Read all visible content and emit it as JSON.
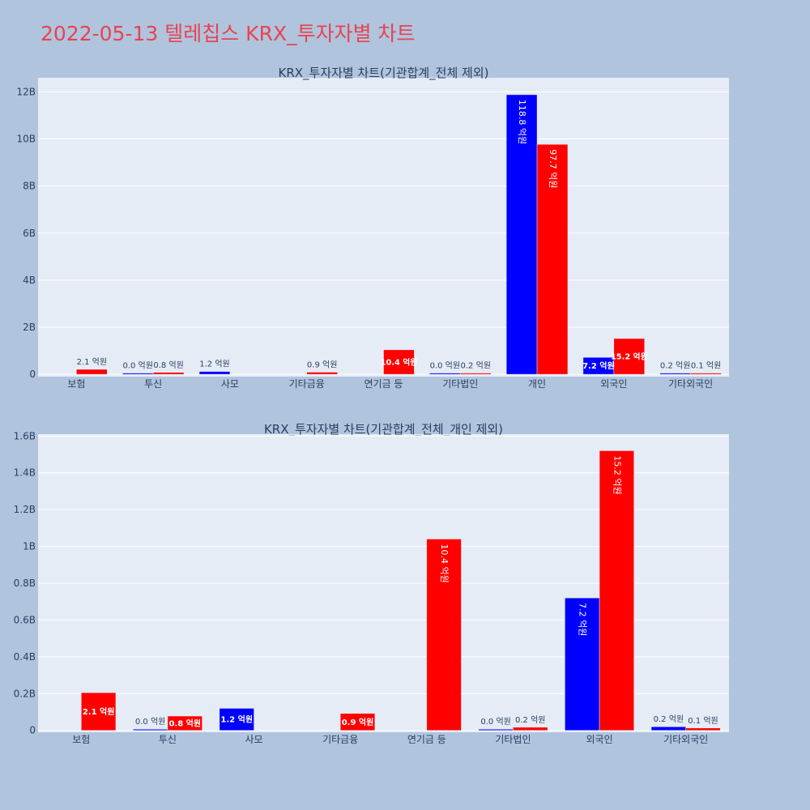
{
  "page": {
    "title": "2022-05-13 텔레칩스 KRX_투자자별 차트"
  },
  "colors": {
    "page_background": "#b0c4de",
    "plot_background": "#e5ecf6",
    "grid": "#ffffff",
    "buy": "#0000ff",
    "sell": "#ff0000",
    "text": "#2a3f5f",
    "title_accent": "#e8434f"
  },
  "chart_data": [
    {
      "type": "bar",
      "title": "KRX_투자자별 차트(기관합계_전체 제외)",
      "categories": [
        "보험",
        "투신",
        "사모",
        "기타금융",
        "연기금 등",
        "기타법인",
        "개인",
        "외국인",
        "기타외국인"
      ],
      "series": [
        {
          "color": "#0000ff",
          "values": [
            0,
            0.003,
            0.12,
            0,
            0,
            0.001,
            11.88,
            0.72,
            0.02
          ],
          "labels": [
            "",
            "0.0 억원",
            "1.2 억원",
            "",
            "",
            "0.0 억원",
            "118.8 억원",
            "7.2 억원",
            "0.2 억원"
          ]
        },
        {
          "color": "#ff0000",
          "values": [
            0.21,
            0.08,
            0,
            0.09,
            1.04,
            0.02,
            9.77,
            1.52,
            0.01
          ],
          "labels": [
            "2.1 억원",
            "0.8 억원",
            "",
            "0.9 억원",
            "10.4 억원",
            "0.2 억원",
            "97.7 억원",
            "15.2 억원",
            "0.1 억원"
          ]
        }
      ],
      "yticks": [
        0,
        2,
        4,
        6,
        8,
        10,
        12
      ],
      "ytick_labels": [
        "0",
        "2B",
        "4B",
        "6B",
        "8B",
        "10B",
        "12B"
      ],
      "ylim": [
        -0.1,
        12.6
      ],
      "xlabel": "",
      "ylabel": "",
      "grid": true,
      "legend": "none"
    },
    {
      "type": "bar",
      "title": "KRX_투자자별 차트(기관합계_전체_개인 제외)",
      "categories": [
        "보험",
        "투신",
        "사모",
        "기타금융",
        "연기금 등",
        "기타법인",
        "외국인",
        "기타외국인"
      ],
      "series": [
        {
          "color": "#0000ff",
          "values": [
            0,
            0.003,
            0.12,
            0,
            0,
            0.001,
            0.72,
            0.02
          ],
          "labels": [
            "",
            "0.0 억원",
            "1.2 억원",
            "",
            "",
            "0.0 억원",
            "7.2 억원",
            "0.2 억원"
          ]
        },
        {
          "color": "#ff0000",
          "values": [
            0.205,
            0.078,
            0,
            0.092,
            1.04,
            0.017,
            1.52,
            0.013
          ],
          "labels": [
            "2.1 억원",
            "0.8 억원",
            "",
            "0.9 억원",
            "10.4 억원",
            "0.2 억원",
            "15.2 억원",
            "0.1 억원"
          ]
        }
      ],
      "yticks": [
        0,
        0.2,
        0.4,
        0.6,
        0.8,
        1.0,
        1.2,
        1.4,
        1.6
      ],
      "ytick_labels": [
        "0",
        "0.2B",
        "0.4B",
        "0.6B",
        "0.8B",
        "1B",
        "1.2B",
        "1.4B",
        "1.6B"
      ],
      "ylim": [
        -0.01,
        1.61
      ],
      "xlabel": "",
      "ylabel": "",
      "grid": true,
      "legend": "none"
    }
  ]
}
